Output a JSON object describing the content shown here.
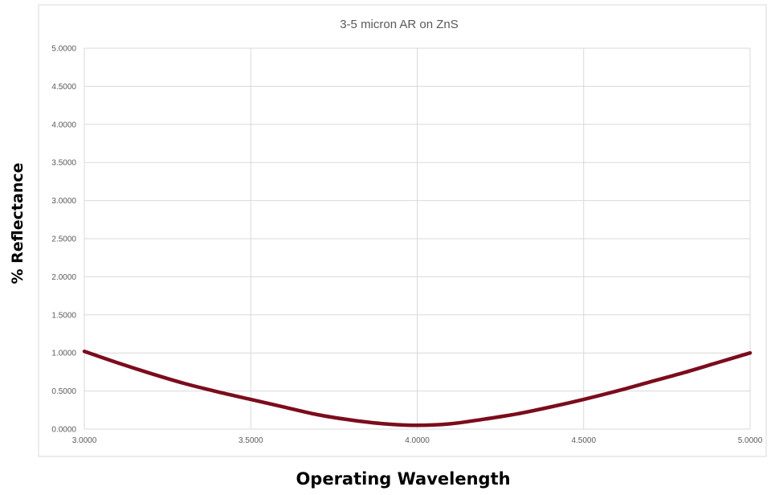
{
  "chart_data": {
    "type": "line",
    "title": "3-5 micron AR on ZnS",
    "xlabel": "Operating Wavelength",
    "ylabel": "% Reflectance",
    "xlim": [
      3.0,
      5.0
    ],
    "ylim": [
      0.0,
      5.0
    ],
    "x_ticks": [
      "3.0000",
      "3.5000",
      "4.0000",
      "4.5000",
      "5.0000"
    ],
    "y_ticks": [
      "0.0000",
      "0.5000",
      "1.0000",
      "1.5000",
      "2.0000",
      "2.5000",
      "3.0000",
      "3.5000",
      "4.0000",
      "4.5000",
      "5.0000"
    ],
    "grid": true,
    "legend": "none",
    "series": [
      {
        "color": "#7b0c1c",
        "x": [
          3.0,
          3.1,
          3.2,
          3.3,
          3.4,
          3.5,
          3.6,
          3.7,
          3.8,
          3.9,
          4.0,
          4.1,
          4.2,
          4.3,
          4.4,
          4.5,
          4.6,
          4.7,
          4.8,
          4.9,
          5.0
        ],
        "values": [
          1.02,
          0.87,
          0.73,
          0.6,
          0.49,
          0.39,
          0.29,
          0.19,
          0.12,
          0.07,
          0.05,
          0.07,
          0.13,
          0.2,
          0.29,
          0.39,
          0.5,
          0.62,
          0.74,
          0.87,
          1.0
        ]
      }
    ]
  },
  "colors": {
    "gridline": "#d9d9d9",
    "plot_border": "#d9d9d9",
    "series_line": "#7b0c1c"
  }
}
